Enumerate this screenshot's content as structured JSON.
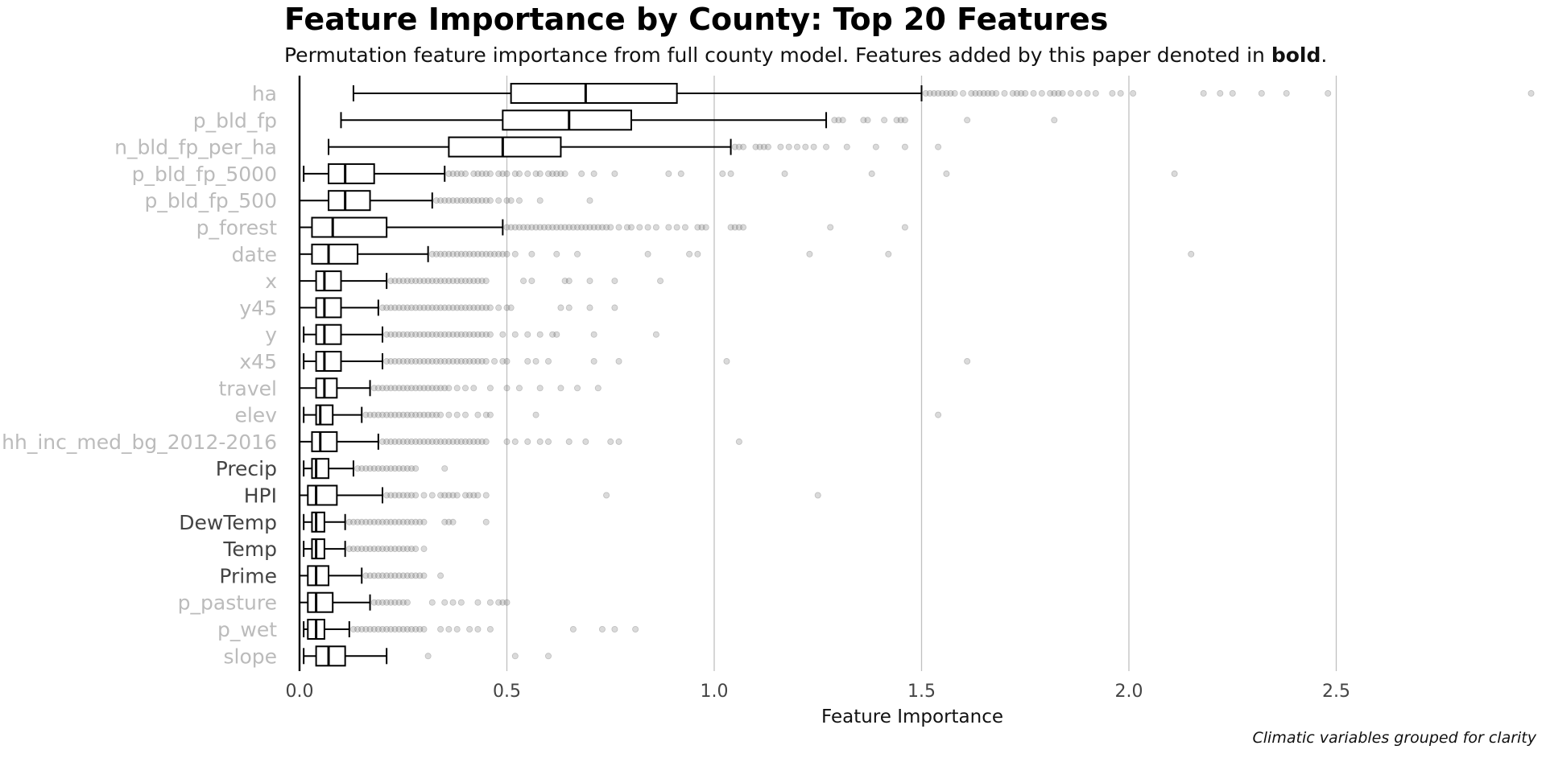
{
  "chart_data": {
    "type": "boxplot",
    "title": "Feature Importance by County: Top 20 Features",
    "subtitle": {
      "prefix": "Permutation feature importance from full county model. Features added by this paper denoted in ",
      "emphasis": "bold",
      "suffix": "."
    },
    "xlabel": "Feature Importance",
    "ylabel": "",
    "caption": "Climatic variables grouped for clarity",
    "xlim": [
      0,
      2.98
    ],
    "x_ticks": [
      0.0,
      0.5,
      1.0,
      1.5,
      2.0,
      2.5
    ],
    "x_tick_labels": [
      "0.0",
      "0.5",
      "1.0",
      "1.5",
      "2.0",
      "2.5"
    ],
    "grid": "vertical major",
    "colors": {
      "new_feature_label": "#444444",
      "existing_feature_label": "#bbbbbb",
      "box_stroke": "#000000",
      "outlier": "#555555",
      "grid": "#c0c0c0"
    },
    "series": [
      {
        "feature": "ha",
        "added_by_paper": false,
        "whisker_low": 0.13,
        "q1": 0.51,
        "median": 0.69,
        "q3": 0.91,
        "whisker_high": 1.5,
        "outliers": [
          1.51,
          1.52,
          1.53,
          1.54,
          1.55,
          1.56,
          1.57,
          1.58,
          1.6,
          1.62,
          1.63,
          1.64,
          1.65,
          1.66,
          1.67,
          1.68,
          1.7,
          1.72,
          1.73,
          1.74,
          1.75,
          1.77,
          1.79,
          1.81,
          1.82,
          1.83,
          1.84,
          1.86,
          1.88,
          1.9,
          1.92,
          1.96,
          1.98,
          2.01,
          2.18,
          2.22,
          2.25,
          2.32,
          2.38,
          2.48,
          2.97
        ]
      },
      {
        "feature": "p_bld_fp",
        "added_by_paper": false,
        "whisker_low": 0.1,
        "q1": 0.49,
        "median": 0.65,
        "q3": 0.8,
        "whisker_high": 1.27,
        "outliers": [
          1.29,
          1.3,
          1.31,
          1.36,
          1.37,
          1.41,
          1.44,
          1.45,
          1.46,
          1.61,
          1.82
        ]
      },
      {
        "feature": "n_bld_fp_per_ha",
        "added_by_paper": false,
        "whisker_low": 0.07,
        "q1": 0.36,
        "median": 0.49,
        "q3": 0.63,
        "whisker_high": 1.04,
        "outliers": [
          1.05,
          1.06,
          1.07,
          1.1,
          1.11,
          1.12,
          1.13,
          1.16,
          1.18,
          1.2,
          1.22,
          1.24,
          1.27,
          1.32,
          1.39,
          1.46,
          1.54
        ]
      },
      {
        "feature": "p_bld_fp_5000",
        "added_by_paper": false,
        "whisker_low": 0.01,
        "q1": 0.07,
        "median": 0.11,
        "q3": 0.18,
        "whisker_high": 0.35,
        "outliers": [
          0.36,
          0.37,
          0.38,
          0.39,
          0.4,
          0.42,
          0.43,
          0.44,
          0.45,
          0.46,
          0.48,
          0.49,
          0.5,
          0.52,
          0.53,
          0.55,
          0.57,
          0.58,
          0.6,
          0.61,
          0.62,
          0.63,
          0.64,
          0.68,
          0.71,
          0.76,
          0.89,
          0.92,
          1.02,
          1.04,
          1.17,
          1.38,
          1.56,
          2.11
        ]
      },
      {
        "feature": "p_bld_fp_500",
        "added_by_paper": false,
        "whisker_low": 0.0,
        "q1": 0.07,
        "median": 0.11,
        "q3": 0.17,
        "whisker_high": 0.32,
        "outliers": [
          0.33,
          0.34,
          0.35,
          0.36,
          0.37,
          0.38,
          0.39,
          0.4,
          0.41,
          0.42,
          0.43,
          0.44,
          0.45,
          0.46,
          0.48,
          0.5,
          0.51,
          0.53,
          0.58,
          0.7
        ]
      },
      {
        "feature": "p_forest",
        "added_by_paper": false,
        "whisker_low": 0.0,
        "q1": 0.03,
        "median": 0.08,
        "q3": 0.21,
        "whisker_high": 0.49,
        "outliers": [
          0.5,
          0.51,
          0.52,
          0.53,
          0.54,
          0.55,
          0.56,
          0.57,
          0.58,
          0.59,
          0.6,
          0.61,
          0.62,
          0.63,
          0.64,
          0.65,
          0.66,
          0.67,
          0.68,
          0.69,
          0.7,
          0.71,
          0.72,
          0.73,
          0.74,
          0.75,
          0.77,
          0.79,
          0.8,
          0.82,
          0.84,
          0.86,
          0.89,
          0.91,
          0.93,
          0.96,
          0.97,
          0.98,
          1.04,
          1.05,
          1.06,
          1.07,
          1.28,
          1.46
        ]
      },
      {
        "feature": "date",
        "added_by_paper": false,
        "whisker_low": 0.0,
        "q1": 0.03,
        "median": 0.07,
        "q3": 0.14,
        "whisker_high": 0.31,
        "outliers": [
          0.32,
          0.33,
          0.34,
          0.35,
          0.36,
          0.37,
          0.38,
          0.39,
          0.4,
          0.41,
          0.42,
          0.43,
          0.44,
          0.45,
          0.46,
          0.47,
          0.48,
          0.49,
          0.5,
          0.52,
          0.56,
          0.62,
          0.67,
          0.84,
          0.94,
          0.96,
          1.23,
          1.42,
          2.15
        ]
      },
      {
        "feature": "x",
        "added_by_paper": false,
        "whisker_low": 0.0,
        "q1": 0.04,
        "median": 0.06,
        "q3": 0.1,
        "whisker_high": 0.21,
        "outliers": [
          0.22,
          0.23,
          0.24,
          0.25,
          0.26,
          0.27,
          0.28,
          0.29,
          0.3,
          0.31,
          0.32,
          0.33,
          0.34,
          0.35,
          0.36,
          0.37,
          0.38,
          0.39,
          0.4,
          0.41,
          0.42,
          0.43,
          0.44,
          0.45,
          0.54,
          0.56,
          0.64,
          0.65,
          0.7,
          0.76,
          0.87
        ]
      },
      {
        "feature": "y45",
        "added_by_paper": false,
        "whisker_low": 0.0,
        "q1": 0.04,
        "median": 0.06,
        "q3": 0.1,
        "whisker_high": 0.19,
        "outliers": [
          0.2,
          0.21,
          0.22,
          0.23,
          0.24,
          0.25,
          0.26,
          0.27,
          0.28,
          0.29,
          0.3,
          0.31,
          0.32,
          0.33,
          0.34,
          0.35,
          0.36,
          0.37,
          0.38,
          0.39,
          0.4,
          0.41,
          0.42,
          0.43,
          0.44,
          0.45,
          0.46,
          0.48,
          0.5,
          0.51,
          0.63,
          0.65,
          0.7,
          0.76
        ]
      },
      {
        "feature": "y",
        "added_by_paper": false,
        "whisker_low": 0.01,
        "q1": 0.04,
        "median": 0.06,
        "q3": 0.1,
        "whisker_high": 0.2,
        "outliers": [
          0.21,
          0.22,
          0.23,
          0.24,
          0.25,
          0.26,
          0.27,
          0.28,
          0.29,
          0.3,
          0.31,
          0.32,
          0.33,
          0.34,
          0.35,
          0.36,
          0.37,
          0.38,
          0.39,
          0.4,
          0.41,
          0.42,
          0.43,
          0.44,
          0.45,
          0.46,
          0.49,
          0.52,
          0.55,
          0.58,
          0.61,
          0.62,
          0.71,
          0.86
        ]
      },
      {
        "feature": "x45",
        "added_by_paper": false,
        "whisker_low": 0.01,
        "q1": 0.04,
        "median": 0.06,
        "q3": 0.1,
        "whisker_high": 0.2,
        "outliers": [
          0.21,
          0.22,
          0.23,
          0.24,
          0.25,
          0.26,
          0.27,
          0.28,
          0.29,
          0.3,
          0.31,
          0.32,
          0.33,
          0.34,
          0.35,
          0.36,
          0.37,
          0.38,
          0.39,
          0.4,
          0.41,
          0.42,
          0.43,
          0.44,
          0.45,
          0.47,
          0.49,
          0.5,
          0.55,
          0.57,
          0.6,
          0.71,
          0.77,
          1.03,
          1.61
        ]
      },
      {
        "feature": "travel",
        "added_by_paper": false,
        "whisker_low": 0.0,
        "q1": 0.04,
        "median": 0.06,
        "q3": 0.09,
        "whisker_high": 0.17,
        "outliers": [
          0.18,
          0.19,
          0.2,
          0.21,
          0.22,
          0.23,
          0.24,
          0.25,
          0.26,
          0.27,
          0.28,
          0.29,
          0.3,
          0.31,
          0.32,
          0.33,
          0.34,
          0.35,
          0.36,
          0.38,
          0.4,
          0.42,
          0.46,
          0.5,
          0.53,
          0.58,
          0.63,
          0.67,
          0.72
        ]
      },
      {
        "feature": "elev",
        "added_by_paper": false,
        "whisker_low": 0.01,
        "q1": 0.04,
        "median": 0.05,
        "q3": 0.08,
        "whisker_high": 0.15,
        "outliers": [
          0.16,
          0.17,
          0.18,
          0.19,
          0.2,
          0.21,
          0.22,
          0.23,
          0.24,
          0.25,
          0.26,
          0.27,
          0.28,
          0.29,
          0.3,
          0.31,
          0.32,
          0.33,
          0.34,
          0.36,
          0.38,
          0.4,
          0.43,
          0.45,
          0.46,
          0.57,
          1.54
        ]
      },
      {
        "feature": "hh_inc_med_bg_2012-2016",
        "added_by_paper": false,
        "whisker_low": 0.0,
        "q1": 0.03,
        "median": 0.05,
        "q3": 0.09,
        "whisker_high": 0.19,
        "outliers": [
          0.2,
          0.21,
          0.22,
          0.23,
          0.24,
          0.25,
          0.26,
          0.27,
          0.28,
          0.29,
          0.3,
          0.31,
          0.32,
          0.33,
          0.34,
          0.35,
          0.36,
          0.37,
          0.38,
          0.39,
          0.4,
          0.41,
          0.42,
          0.43,
          0.44,
          0.45,
          0.5,
          0.52,
          0.55,
          0.58,
          0.6,
          0.65,
          0.69,
          0.75,
          0.77,
          1.06
        ]
      },
      {
        "feature": "Precip",
        "added_by_paper": true,
        "whisker_low": 0.01,
        "q1": 0.03,
        "median": 0.04,
        "q3": 0.07,
        "whisker_high": 0.13,
        "outliers": [
          0.14,
          0.15,
          0.16,
          0.17,
          0.18,
          0.19,
          0.2,
          0.21,
          0.22,
          0.23,
          0.24,
          0.25,
          0.26,
          0.27,
          0.28,
          0.35
        ]
      },
      {
        "feature": "HPI",
        "added_by_paper": true,
        "whisker_low": 0.0,
        "q1": 0.02,
        "median": 0.04,
        "q3": 0.09,
        "whisker_high": 0.2,
        "outliers": [
          0.21,
          0.22,
          0.23,
          0.24,
          0.25,
          0.26,
          0.27,
          0.28,
          0.3,
          0.32,
          0.34,
          0.35,
          0.36,
          0.37,
          0.38,
          0.4,
          0.41,
          0.42,
          0.43,
          0.45,
          0.74,
          1.25
        ]
      },
      {
        "feature": "DewTemp",
        "added_by_paper": true,
        "whisker_low": 0.01,
        "q1": 0.03,
        "median": 0.04,
        "q3": 0.06,
        "whisker_high": 0.11,
        "outliers": [
          0.12,
          0.13,
          0.14,
          0.15,
          0.16,
          0.17,
          0.18,
          0.19,
          0.2,
          0.21,
          0.22,
          0.23,
          0.24,
          0.25,
          0.26,
          0.27,
          0.28,
          0.29,
          0.3,
          0.35,
          0.36,
          0.37,
          0.45
        ]
      },
      {
        "feature": "Temp",
        "added_by_paper": true,
        "whisker_low": 0.01,
        "q1": 0.03,
        "median": 0.04,
        "q3": 0.06,
        "whisker_high": 0.11,
        "outliers": [
          0.12,
          0.13,
          0.14,
          0.15,
          0.16,
          0.17,
          0.18,
          0.19,
          0.2,
          0.21,
          0.22,
          0.23,
          0.24,
          0.25,
          0.26,
          0.27,
          0.28,
          0.3
        ]
      },
      {
        "feature": "Prime",
        "added_by_paper": true,
        "whisker_low": 0.0,
        "q1": 0.02,
        "median": 0.04,
        "q3": 0.07,
        "whisker_high": 0.15,
        "outliers": [
          0.16,
          0.17,
          0.18,
          0.19,
          0.2,
          0.21,
          0.22,
          0.23,
          0.24,
          0.25,
          0.26,
          0.27,
          0.28,
          0.29,
          0.3,
          0.34
        ]
      },
      {
        "feature": "p_pasture",
        "added_by_paper": false,
        "whisker_low": 0.0,
        "q1": 0.02,
        "median": 0.04,
        "q3": 0.08,
        "whisker_high": 0.17,
        "outliers": [
          0.18,
          0.19,
          0.2,
          0.21,
          0.22,
          0.23,
          0.24,
          0.25,
          0.26,
          0.32,
          0.35,
          0.37,
          0.39,
          0.43,
          0.46,
          0.48,
          0.49,
          0.5
        ]
      },
      {
        "feature": "p_wet",
        "added_by_paper": false,
        "whisker_low": 0.01,
        "q1": 0.02,
        "median": 0.04,
        "q3": 0.06,
        "whisker_high": 0.12,
        "outliers": [
          0.13,
          0.14,
          0.15,
          0.16,
          0.17,
          0.18,
          0.19,
          0.2,
          0.21,
          0.22,
          0.23,
          0.24,
          0.25,
          0.26,
          0.27,
          0.28,
          0.29,
          0.3,
          0.34,
          0.36,
          0.38,
          0.41,
          0.43,
          0.46,
          0.66,
          0.73,
          0.76,
          0.81
        ]
      },
      {
        "feature": "slope",
        "added_by_paper": false,
        "whisker_low": 0.01,
        "q1": 0.04,
        "median": 0.07,
        "q3": 0.11,
        "whisker_high": 0.21,
        "outliers": [
          0.31,
          0.52,
          0.6
        ]
      }
    ]
  }
}
